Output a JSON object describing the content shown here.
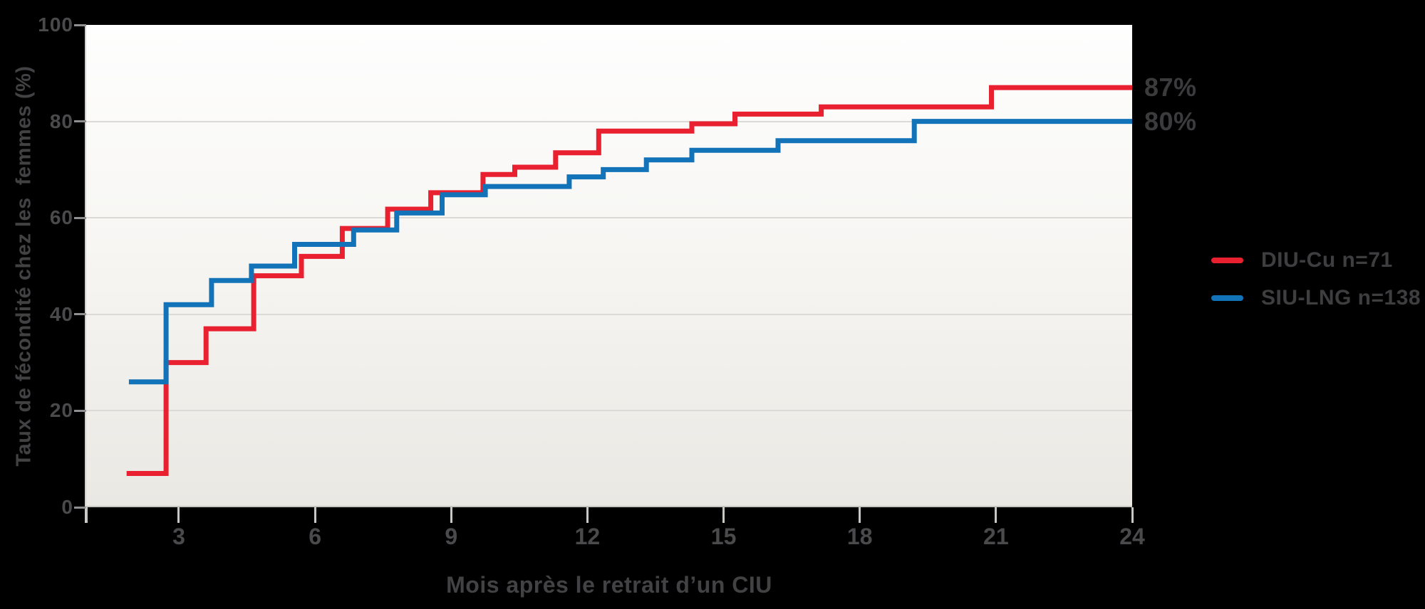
{
  "chart_data": {
    "type": "line",
    "subtype": "step-after",
    "title": "",
    "xlabel": "Mois après le retrait d’un CIU",
    "ylabel": "Taux de fécondité chez les  femmes (%)",
    "x_ticks": [
      3,
      6,
      9,
      12,
      15,
      18,
      21,
      24
    ],
    "y_ticks": [
      0,
      20,
      40,
      60,
      80,
      100
    ],
    "xlim": [
      0.96,
      24
    ],
    "ylim": [
      0,
      100
    ],
    "grid": "horizontal",
    "legend_position": "right",
    "series": [
      {
        "name": "DIU-Cu n=71",
        "color": "#e8202f",
        "end_label": "87%",
        "points": [
          [
            1.85,
            7
          ],
          [
            2.72,
            30
          ],
          [
            3.6,
            37
          ],
          [
            4.65,
            48
          ],
          [
            5.7,
            52
          ],
          [
            6.6,
            57.8
          ],
          [
            7.6,
            61.8
          ],
          [
            8.55,
            65.2
          ],
          [
            9.7,
            69
          ],
          [
            10.4,
            70.5
          ],
          [
            11.3,
            73.5
          ],
          [
            12.25,
            78
          ],
          [
            14.3,
            79.5
          ],
          [
            15.25,
            81.5
          ],
          [
            17.15,
            83
          ],
          [
            20.9,
            87
          ],
          [
            24,
            87
          ]
        ]
      },
      {
        "name": "SIU-LNG n=138",
        "color": "#1273b8",
        "end_label": "80%",
        "points": [
          [
            1.9,
            26
          ],
          [
            2.72,
            42
          ],
          [
            3.72,
            47
          ],
          [
            4.6,
            50
          ],
          [
            5.55,
            54.5
          ],
          [
            6.85,
            57.5
          ],
          [
            7.8,
            61
          ],
          [
            8.8,
            64.8
          ],
          [
            9.75,
            66.5
          ],
          [
            11.6,
            68.5
          ],
          [
            12.35,
            70
          ],
          [
            13.3,
            72
          ],
          [
            14.3,
            74
          ],
          [
            16.2,
            76
          ],
          [
            19.2,
            80
          ],
          [
            24,
            80
          ]
        ]
      }
    ]
  },
  "colors": {
    "background": "#000000",
    "series_red": "#e8202f",
    "series_blue": "#1273b8"
  }
}
